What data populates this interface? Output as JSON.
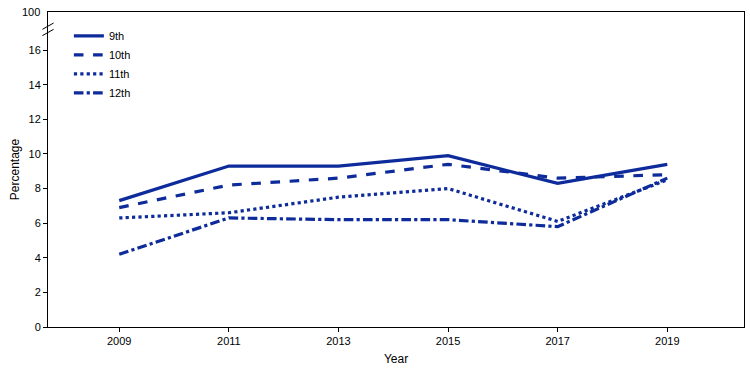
{
  "chart_data": {
    "type": "line",
    "x_label": "Year",
    "y_label": "Percentage",
    "x": [
      2009,
      2011,
      2013,
      2015,
      2017,
      2019
    ],
    "series": [
      {
        "name": "9th",
        "color": "#0d2b9b",
        "line_style": "solid",
        "values": [
          7.3,
          9.3,
          9.3,
          9.9,
          8.3,
          9.4
        ]
      },
      {
        "name": "10th",
        "color": "#0d2b9b",
        "line_style": "dash",
        "values": [
          6.9,
          8.2,
          8.6,
          9.4,
          8.6,
          8.8
        ]
      },
      {
        "name": "11th",
        "color": "#0d2b9b",
        "line_style": "dot",
        "values": [
          6.3,
          6.6,
          7.5,
          8.0,
          6.1,
          8.5
        ]
      },
      {
        "name": "12th",
        "color": "#0d2b9b",
        "line_style": "dashdot",
        "values": [
          4.2,
          6.3,
          6.2,
          6.2,
          5.8,
          8.6
        ]
      }
    ],
    "xlim": [
      2007.7,
      2020.4
    ],
    "xticks": [
      2009,
      2011,
      2013,
      2015,
      2017,
      2019
    ],
    "ylim": [
      0,
      18.2
    ],
    "yticks": [
      0,
      2,
      4,
      6,
      8,
      10,
      12,
      14,
      16
    ],
    "annotations": [
      "100"
    ],
    "grid": false,
    "legend": "top left"
  }
}
